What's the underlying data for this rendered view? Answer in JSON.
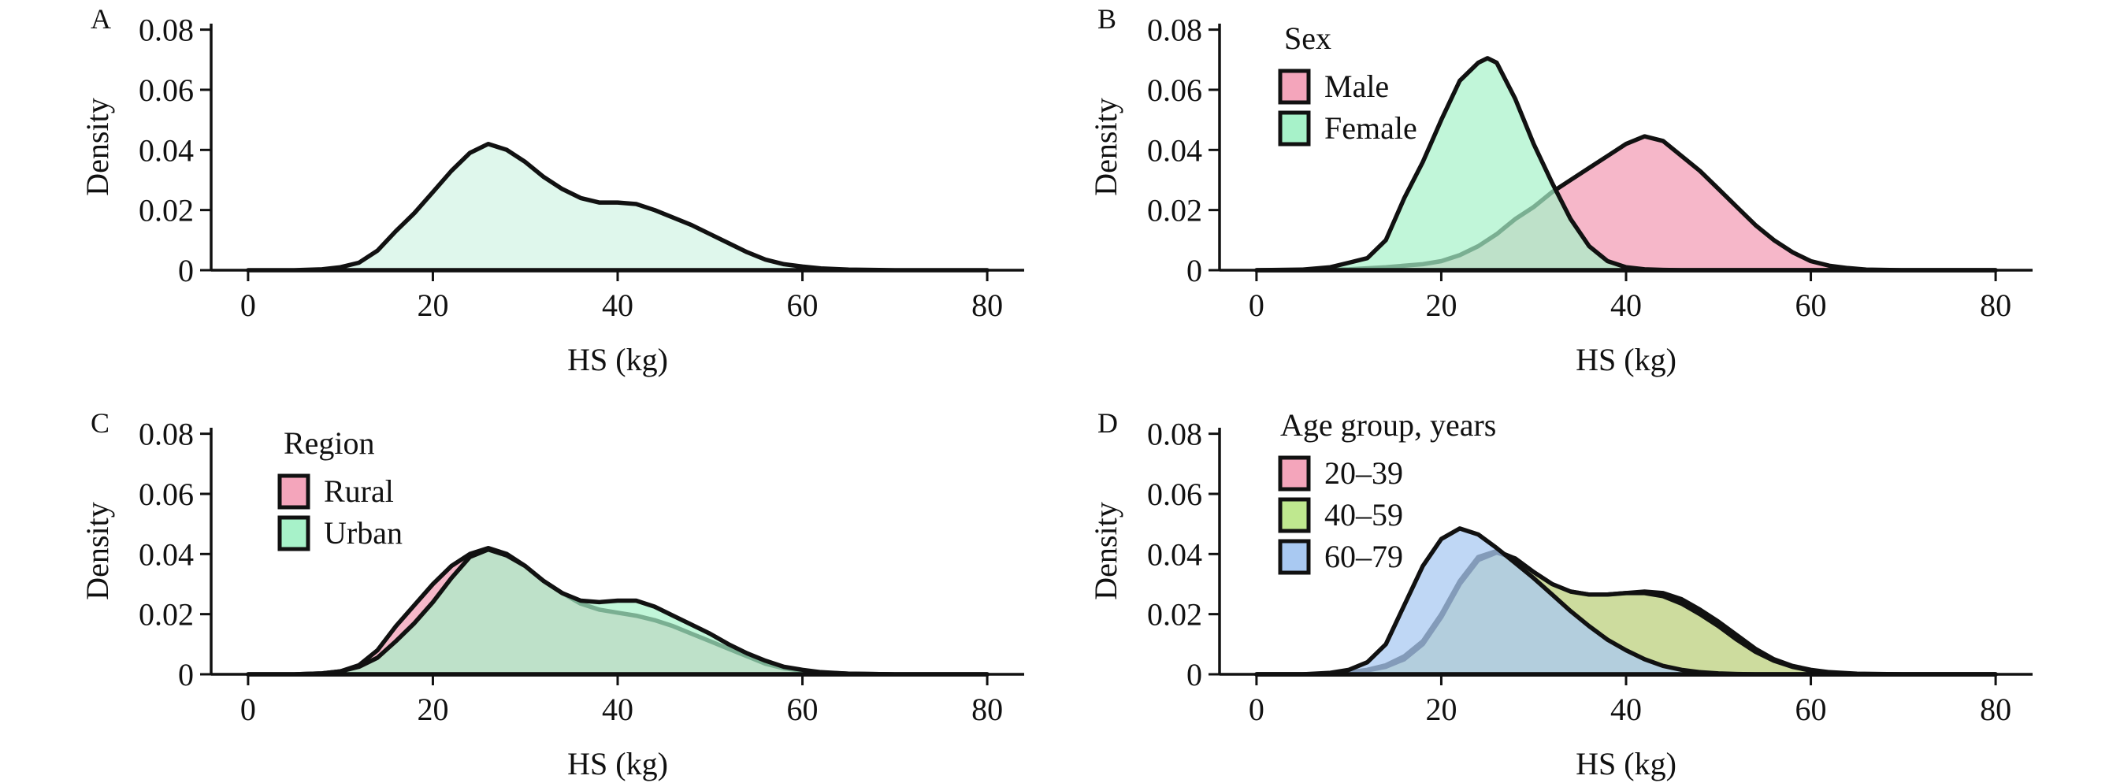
{
  "chart_data": [
    {
      "type": "area",
      "panel_label": "A",
      "xlabel": "HS (kg)",
      "ylabel": "Density",
      "xlim": [
        -4,
        84
      ],
      "ylim": [
        0,
        0.082
      ],
      "x_ticks": [
        0,
        20,
        40,
        60,
        80
      ],
      "x_tick_labels": [
        "0",
        "20",
        "40",
        "60",
        "80"
      ],
      "y_ticks": [
        0,
        0.02,
        0.04,
        0.06,
        0.08
      ],
      "y_tick_labels": [
        "0",
        "0.02",
        "0.04",
        "0.06",
        "0.08"
      ],
      "grid": false,
      "legend": null,
      "series": [
        {
          "color": "#dff7ec",
          "fill_opacity": 1,
          "x": [
            0,
            5,
            8,
            10,
            12,
            14,
            16,
            18,
            20,
            22,
            24,
            26,
            28,
            30,
            32,
            34,
            36,
            38,
            40,
            42,
            44,
            46,
            48,
            50,
            52,
            54,
            56,
            58,
            60,
            62,
            65,
            70,
            75,
            80
          ],
          "y": [
            0,
            0,
            0.0003,
            0.001,
            0.0025,
            0.0065,
            0.013,
            0.019,
            0.026,
            0.033,
            0.039,
            0.042,
            0.04,
            0.036,
            0.031,
            0.027,
            0.024,
            0.0225,
            0.0225,
            0.022,
            0.02,
            0.0175,
            0.015,
            0.012,
            0.009,
            0.006,
            0.0035,
            0.002,
            0.0012,
            0.0006,
            0.0002,
            0,
            0,
            0
          ]
        }
      ]
    },
    {
      "type": "area",
      "panel_label": "B",
      "xlabel": "HS (kg)",
      "ylabel": "Density",
      "xlim": [
        -4,
        84
      ],
      "ylim": [
        0,
        0.082
      ],
      "x_ticks": [
        0,
        20,
        40,
        60,
        80
      ],
      "x_tick_labels": [
        "0",
        "20",
        "40",
        "60",
        "80"
      ],
      "y_ticks": [
        0,
        0.02,
        0.04,
        0.06,
        0.08
      ],
      "y_tick_labels": [
        "0",
        "0.02",
        "0.04",
        "0.06",
        "0.08"
      ],
      "grid": false,
      "legend": {
        "title": "Sex",
        "position": "upper-left"
      },
      "series": [
        {
          "name": "Male",
          "color": "#f4a5bb",
          "fill_opacity": 0.8,
          "x": [
            0,
            5,
            10,
            14,
            18,
            20,
            22,
            24,
            26,
            28,
            30,
            32,
            34,
            36,
            38,
            40,
            42,
            44,
            46,
            48,
            50,
            52,
            54,
            56,
            58,
            60,
            62,
            64,
            66,
            70,
            75,
            80
          ],
          "y": [
            0,
            0,
            0.0003,
            0.001,
            0.002,
            0.003,
            0.005,
            0.008,
            0.012,
            0.017,
            0.021,
            0.026,
            0.03,
            0.034,
            0.038,
            0.042,
            0.0445,
            0.043,
            0.038,
            0.033,
            0.027,
            0.021,
            0.015,
            0.01,
            0.006,
            0.003,
            0.0015,
            0.0007,
            0.0002,
            0,
            0,
            0
          ]
        },
        {
          "name": "Female",
          "color": "#a7f2c9",
          "fill_opacity": 0.7,
          "x": [
            0,
            5,
            8,
            10,
            12,
            14,
            16,
            18,
            20,
            22,
            24,
            25,
            26,
            28,
            30,
            32,
            34,
            36,
            38,
            40,
            42,
            44,
            46,
            50,
            55,
            60,
            70,
            80
          ],
          "y": [
            0,
            0.0002,
            0.001,
            0.0025,
            0.004,
            0.01,
            0.024,
            0.036,
            0.05,
            0.063,
            0.069,
            0.0705,
            0.069,
            0.057,
            0.042,
            0.029,
            0.017,
            0.008,
            0.003,
            0.001,
            0.0003,
            0.0001,
            0,
            0,
            0,
            0,
            0,
            0
          ]
        }
      ]
    },
    {
      "type": "area",
      "panel_label": "C",
      "xlabel": "HS (kg)",
      "ylabel": "Density",
      "xlim": [
        -4,
        84
      ],
      "ylim": [
        0,
        0.082
      ],
      "x_ticks": [
        0,
        20,
        40,
        60,
        80
      ],
      "x_tick_labels": [
        "0",
        "20",
        "40",
        "60",
        "80"
      ],
      "y_ticks": [
        0,
        0.02,
        0.04,
        0.06,
        0.08
      ],
      "y_tick_labels": [
        "0",
        "0.02",
        "0.04",
        "0.06",
        "0.08"
      ],
      "grid": false,
      "legend": {
        "title": "Region",
        "position": "upper-left"
      },
      "series": [
        {
          "name": "Rural",
          "color": "#f4a5bb",
          "fill_opacity": 0.8,
          "x": [
            0,
            5,
            8,
            10,
            12,
            14,
            16,
            18,
            20,
            22,
            24,
            26,
            28,
            30,
            32,
            34,
            36,
            38,
            40,
            42,
            44,
            46,
            48,
            50,
            52,
            54,
            56,
            58,
            60,
            62,
            65,
            70,
            75,
            80
          ],
          "y": [
            0,
            0,
            0.0003,
            0.001,
            0.003,
            0.008,
            0.016,
            0.023,
            0.03,
            0.036,
            0.04,
            0.042,
            0.04,
            0.036,
            0.031,
            0.027,
            0.0235,
            0.0215,
            0.0205,
            0.0195,
            0.018,
            0.016,
            0.0135,
            0.011,
            0.0085,
            0.006,
            0.0035,
            0.002,
            0.0012,
            0.0006,
            0.0002,
            0,
            0,
            0
          ]
        },
        {
          "name": "Urban",
          "color": "#a7f2c9",
          "fill_opacity": 0.7,
          "x": [
            0,
            5,
            8,
            10,
            12,
            14,
            16,
            18,
            20,
            22,
            24,
            26,
            28,
            30,
            32,
            34,
            36,
            38,
            40,
            42,
            44,
            46,
            48,
            50,
            52,
            54,
            56,
            58,
            60,
            62,
            65,
            70,
            75,
            80
          ],
          "y": [
            0,
            0,
            0.0003,
            0.001,
            0.0025,
            0.0055,
            0.011,
            0.017,
            0.024,
            0.032,
            0.039,
            0.0415,
            0.0395,
            0.036,
            0.031,
            0.027,
            0.0245,
            0.024,
            0.0245,
            0.0245,
            0.0225,
            0.0195,
            0.0165,
            0.0135,
            0.01,
            0.007,
            0.0045,
            0.0025,
            0.0015,
            0.0007,
            0.0002,
            0,
            0,
            0
          ]
        }
      ]
    },
    {
      "type": "area",
      "panel_label": "D",
      "xlabel": "HS (kg)",
      "ylabel": "Density",
      "xlim": [
        -4,
        84
      ],
      "ylim": [
        0,
        0.082
      ],
      "x_ticks": [
        0,
        20,
        40,
        60,
        80
      ],
      "x_tick_labels": [
        "0",
        "20",
        "40",
        "60",
        "80"
      ],
      "y_ticks": [
        0,
        0.02,
        0.04,
        0.06,
        0.08
      ],
      "y_tick_labels": [
        "0",
        "0.02",
        "0.04",
        "0.06",
        "0.08"
      ],
      "grid": false,
      "legend": {
        "title": "Age group, years",
        "position": "upper-left"
      },
      "series": [
        {
          "name": "20–39",
          "color": "#f4a5bb",
          "fill_opacity": 0.8,
          "x": [
            0,
            5,
            8,
            10,
            12,
            14,
            16,
            18,
            20,
            22,
            24,
            26,
            28,
            30,
            32,
            34,
            36,
            38,
            40,
            42,
            44,
            46,
            48,
            50,
            52,
            54,
            56,
            58,
            60,
            62,
            65,
            70,
            75,
            80
          ],
          "y": [
            0,
            0,
            0.0002,
            0.0007,
            0.0015,
            0.003,
            0.006,
            0.011,
            0.02,
            0.031,
            0.039,
            0.041,
            0.0385,
            0.034,
            0.03,
            0.0275,
            0.0265,
            0.0265,
            0.027,
            0.0275,
            0.027,
            0.025,
            0.0215,
            0.0175,
            0.013,
            0.0085,
            0.005,
            0.0028,
            0.0015,
            0.0007,
            0.0002,
            0,
            0,
            0
          ]
        },
        {
          "name": "40–59",
          "color": "#bfe88f",
          "fill_opacity": 0.75,
          "x": [
            0,
            5,
            8,
            10,
            12,
            14,
            16,
            18,
            20,
            22,
            24,
            26,
            28,
            30,
            32,
            34,
            36,
            38,
            40,
            42,
            44,
            46,
            48,
            50,
            52,
            54,
            56,
            58,
            60,
            62,
            65,
            70,
            75,
            80
          ],
          "y": [
            0,
            0,
            0.0002,
            0.0006,
            0.0013,
            0.0025,
            0.005,
            0.01,
            0.019,
            0.03,
            0.038,
            0.0405,
            0.0385,
            0.034,
            0.03,
            0.0275,
            0.0265,
            0.0265,
            0.027,
            0.027,
            0.026,
            0.0235,
            0.02,
            0.016,
            0.0115,
            0.0075,
            0.0045,
            0.0025,
            0.0012,
            0.0005,
            0.0001,
            0,
            0,
            0
          ]
        },
        {
          "name": "60–79",
          "color": "#a9c9f2",
          "fill_opacity": 0.75,
          "x": [
            0,
            5,
            8,
            10,
            12,
            14,
            16,
            18,
            20,
            22,
            24,
            26,
            28,
            30,
            32,
            34,
            36,
            38,
            40,
            42,
            44,
            46,
            48,
            50,
            52,
            54,
            56,
            58,
            60,
            62,
            65,
            70,
            75,
            80
          ],
          "y": [
            0,
            0,
            0.0005,
            0.0015,
            0.004,
            0.01,
            0.023,
            0.036,
            0.045,
            0.0485,
            0.0465,
            0.042,
            0.037,
            0.032,
            0.0265,
            0.021,
            0.016,
            0.0115,
            0.008,
            0.005,
            0.0028,
            0.0015,
            0.0007,
            0.0003,
            0.0001,
            0,
            0,
            0,
            0,
            0,
            0,
            0,
            0,
            0
          ]
        }
      ]
    }
  ]
}
